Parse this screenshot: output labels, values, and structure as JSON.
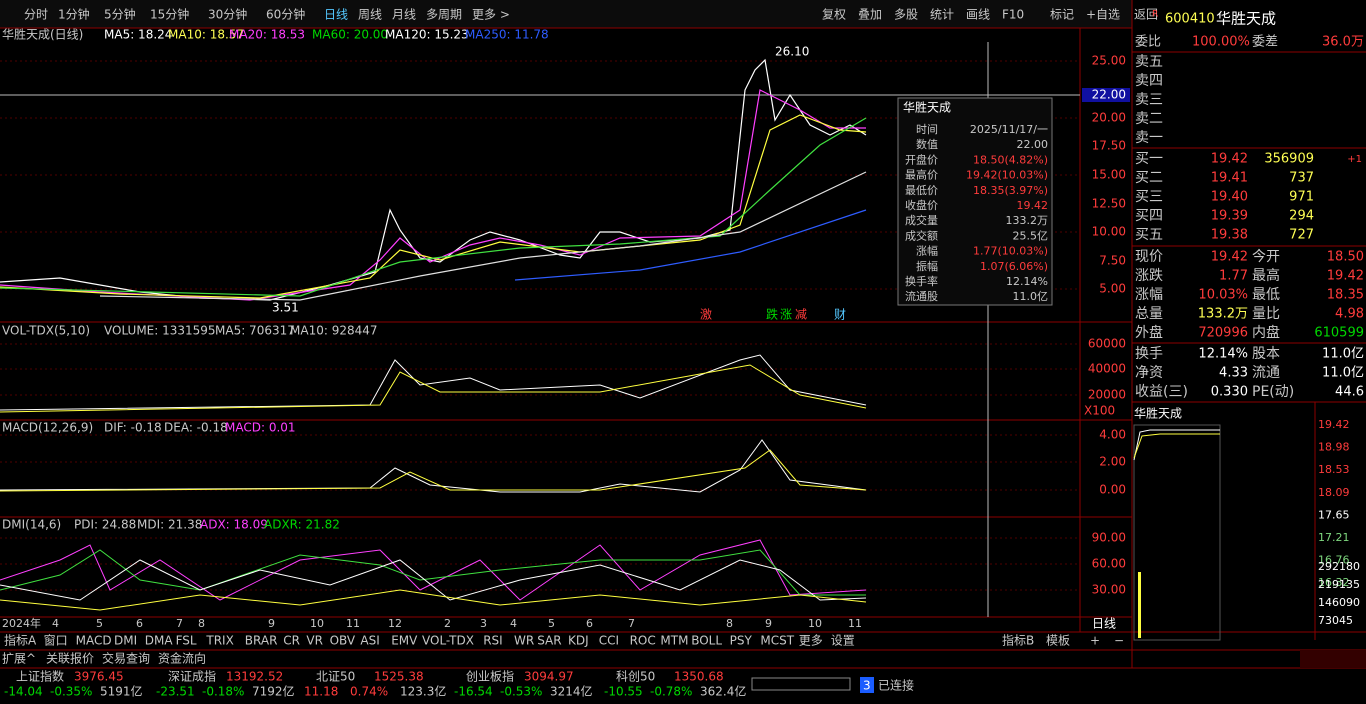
{
  "toolbar": {
    "periods": [
      "分时",
      "1分钟",
      "5分钟",
      "15分钟",
      "30分钟",
      "60分钟",
      "日线",
      "周线",
      "月线",
      "多周期",
      "更多 >"
    ],
    "actions": [
      "复权",
      "叠加",
      "多股",
      "统计",
      "画线",
      "F10",
      "标记",
      "+自选",
      "返回"
    ]
  },
  "main": {
    "legend": [
      "华胜天成(日线)",
      "MA5: 18.24",
      "MA10: 18.57",
      "MA20: 18.53",
      "MA60: 20.00",
      "MA120: 15.23",
      "MA250: 11.78"
    ],
    "axis": [
      "25.00",
      "20.00",
      "17.50",
      "15.00",
      "12.50",
      "10.00",
      "7.50",
      "5.00"
    ],
    "cursor_price": "22.00",
    "high": "26.10",
    "low": "3.51",
    "events": [
      "激",
      "跌",
      "涨",
      "减",
      "财"
    ]
  },
  "tooltip": {
    "title": "华胜天成",
    "rows": [
      [
        "时间",
        "2025/11/17/一"
      ],
      [
        "数值",
        "22.00"
      ],
      [
        "开盘价",
        "18.50(4.82%)"
      ],
      [
        "最高价",
        "19.42(10.03%)"
      ],
      [
        "最低价",
        "18.35(3.97%)"
      ],
      [
        "收盘价",
        "19.42"
      ],
      [
        "成交量",
        "133.2万"
      ],
      [
        "成交额",
        "25.5亿"
      ],
      [
        "涨幅",
        "1.77(10.03%)"
      ],
      [
        "振幅",
        "1.07(6.06%)"
      ],
      [
        "换手率",
        "12.14%"
      ],
      [
        "流通股",
        "11.0亿"
      ]
    ]
  },
  "volume": {
    "legend": [
      "VOL-TDX(5,10)",
      "VOLUME: 1331595",
      "MA5: 706317",
      "MA10: 928447"
    ],
    "axis": [
      "60000",
      "40000",
      "20000"
    ],
    "unit": "X100"
  },
  "macd": {
    "legend": [
      "MACD(12,26,9)",
      "DIF: -0.18",
      "DEA: -0.18",
      "MACD: 0.01"
    ],
    "axis": [
      "4.00",
      "2.00",
      "0.00"
    ]
  },
  "dmi": {
    "legend": [
      "DMI(14,6)",
      "PDI: 24.88",
      "MDI: 21.38",
      "ADX: 18.09",
      "ADXR: 21.82"
    ],
    "axis": [
      "90.00",
      "60.00",
      "30.00"
    ]
  },
  "xaxis": [
    "2024年",
    "4",
    "5",
    "6",
    "7",
    "8",
    "9",
    "10",
    "11",
    "12",
    "2",
    "3",
    "4",
    "5",
    "6",
    "7",
    "8",
    "9",
    "10",
    "11"
  ],
  "tabs": [
    "指标A",
    "窗口",
    "MACD",
    "DMI",
    "DMA",
    "FSL",
    "TRIX",
    "BRAR",
    "CR",
    "VR",
    "OBV",
    "ASI",
    "EMV",
    "VOL-TDX",
    "RSI",
    "WR",
    "SAR",
    "KDJ",
    "CCI",
    "ROC",
    "MTM",
    "BOLL",
    "PSY",
    "MCST",
    "更多",
    "设置"
  ],
  "tabs_right": [
    "指标B",
    "模板",
    "+",
    "−"
  ],
  "period_label": "日线",
  "subtabs": [
    "扩展^",
    "关联报价",
    "交易查询",
    "资金流向"
  ],
  "status": [
    [
      "上证指数",
      "3976.45",
      "-14.04",
      "-0.35%",
      "5191亿"
    ],
    [
      "深证成指",
      "13192.52",
      "-23.51",
      "-0.18%",
      "7192亿"
    ],
    [
      "北证50",
      "1525.38",
      "11.18",
      "0.74%",
      "123.3亿"
    ],
    [
      "创业板指",
      "3094.97",
      "-16.54",
      "-0.53%",
      "3214亿"
    ],
    [
      "科创50",
      "1350.68",
      "-10.55",
      "-0.78%",
      "362.4亿"
    ]
  ],
  "connection": [
    "3",
    "已连接"
  ],
  "quote": {
    "flag": "R",
    "code": "600410",
    "name": "华胜天成",
    "bid_ratio": [
      "委比",
      "100.00%",
      "委差",
      "36.0万"
    ],
    "sell": [
      "卖五",
      "卖四",
      "卖三",
      "卖二",
      "卖一"
    ],
    "buy": [
      [
        "买一",
        "19.42",
        "356909",
        "+1"
      ],
      [
        "买二",
        "19.41",
        "737"
      ],
      [
        "买三",
        "19.40",
        "971"
      ],
      [
        "买四",
        "19.39",
        "294"
      ],
      [
        "买五",
        "19.38",
        "727"
      ]
    ],
    "stats": [
      [
        "现价",
        "19.42",
        "今开",
        "18.50"
      ],
      [
        "涨跌",
        "1.77",
        "最高",
        "19.42"
      ],
      [
        "涨幅",
        "10.03%",
        "最低",
        "18.35"
      ],
      [
        "总量",
        "133.2万",
        "量比",
        "4.98"
      ],
      [
        "外盘",
        "720996",
        "内盘",
        "610599"
      ]
    ],
    "stats2": [
      [
        "换手",
        "12.14%",
        "股本",
        "11.0亿"
      ],
      [
        "净资",
        "4.33",
        "流通",
        "11.0亿"
      ],
      [
        "收益(三)",
        "0.330",
        "PE(动)",
        "44.6"
      ]
    ],
    "mini_title": "华胜天成",
    "mini_axis": [
      "19.42",
      "18.98",
      "18.53",
      "18.09",
      "17.65",
      "17.21",
      "16.76",
      "16.32"
    ],
    "mini_vol": [
      "292180",
      "219135",
      "146090",
      "73045"
    ]
  }
}
